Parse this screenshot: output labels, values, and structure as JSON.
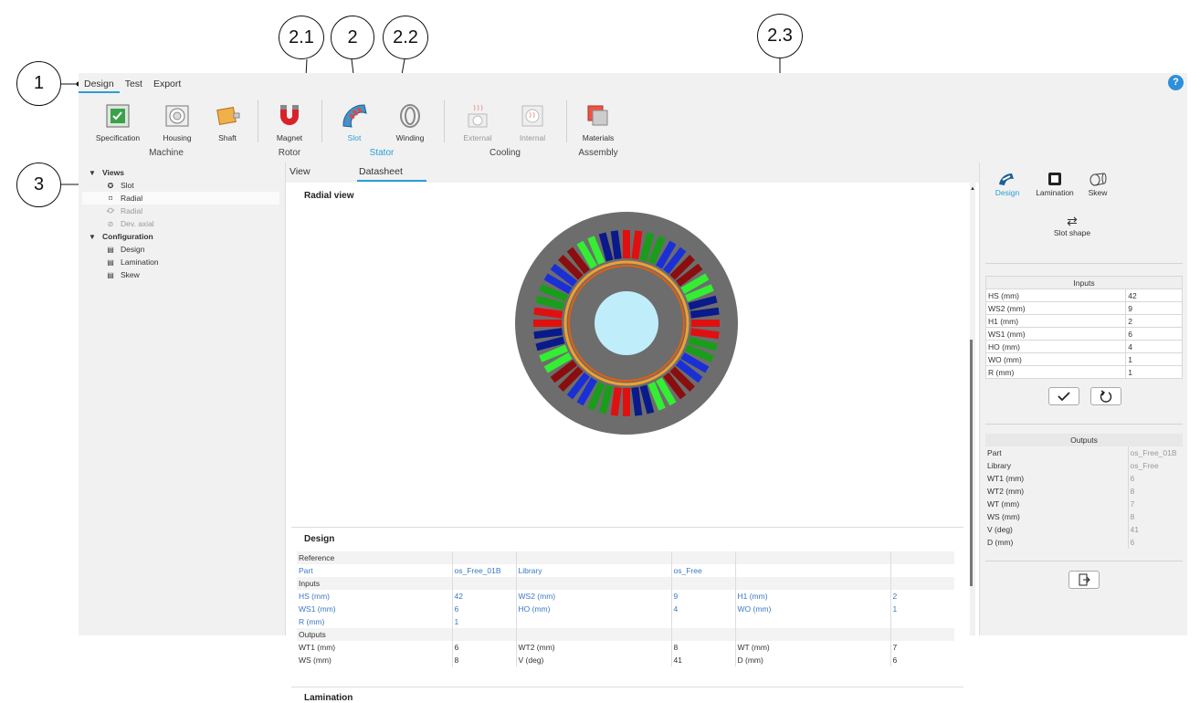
{
  "callouts": [
    "1",
    "2",
    "2.1",
    "2.2",
    "2.3",
    "3"
  ],
  "menu": [
    "Design",
    "Test",
    "Export"
  ],
  "help": "?",
  "ribbon": {
    "buttons": {
      "specification": "Specification",
      "housing": "Housing",
      "shaft": "Shaft",
      "magnet": "Magnet",
      "slot": "Slot",
      "winding": "Winding",
      "external": "External",
      "internal": "Internal",
      "materials": "Materials"
    },
    "groups": {
      "machine": "Machine",
      "rotor": "Rotor",
      "stator": "Stator",
      "cooling": "Cooling",
      "assembly": "Assembly"
    }
  },
  "tree": {
    "views": "Views",
    "slot": "Slot",
    "radial": "Radial",
    "radial_disabled": "Radial",
    "dev_axial": "Dev. axial",
    "configuration": "Configuration",
    "design": "Design",
    "lamination": "Lamination",
    "skew": "Skew"
  },
  "tabs": {
    "view": "View",
    "datasheet": "Datasheet"
  },
  "center": {
    "radial_view_title": "Radial view",
    "design_title": "Design",
    "lamination_title": "Lamination",
    "table": {
      "reference_label": "Reference",
      "part_row": [
        "Part",
        "os_Free_01B",
        "Library",
        "",
        "os_Free",
        "",
        ""
      ],
      "inputs_label": "Inputs",
      "input_rows": [
        [
          "HS (mm)",
          "42",
          "WS2 (mm)",
          "9",
          "H1 (mm)",
          "2"
        ],
        [
          "WS1 (mm)",
          "6",
          "HO (mm)",
          "4",
          "WO (mm)",
          "1"
        ],
        [
          "R (mm)",
          "1",
          "",
          "",
          "",
          ""
        ]
      ],
      "outputs_label": "Outputs",
      "output_rows": [
        [
          "WT1 (mm)",
          "6",
          "WT2 (mm)",
          "8",
          "WT (mm)",
          "7"
        ],
        [
          "WS (mm)",
          "8",
          "V (deg)",
          "41",
          "D (mm)",
          "6"
        ]
      ]
    }
  },
  "right_panel": {
    "design": "Design",
    "lamination": "Lamination",
    "skew": "Skew",
    "slot_shape": "Slot shape",
    "inputs_title": "Inputs",
    "inputs": [
      [
        "HS (mm)",
        "42"
      ],
      [
        "WS2 (mm)",
        "9"
      ],
      [
        "H1 (mm)",
        "2"
      ],
      [
        "WS1 (mm)",
        "6"
      ],
      [
        "HO (mm)",
        "4"
      ],
      [
        "WO (mm)",
        "1"
      ],
      [
        "R (mm)",
        "1"
      ]
    ],
    "outputs_title": "Outputs",
    "outputs": [
      [
        "Part",
        "os_Free_01B"
      ],
      [
        "Library",
        "os_Free"
      ],
      [
        "WT1 (mm)",
        "6"
      ],
      [
        "WT2 (mm)",
        "8"
      ],
      [
        "WT (mm)",
        "7"
      ],
      [
        "WS (mm)",
        "8"
      ],
      [
        "V (deg)",
        "41"
      ],
      [
        "D (mm)",
        "6"
      ]
    ]
  },
  "colors": {
    "accent": "#2a9fd6",
    "slot_colors": [
      "#e01010",
      "#1a9d1a",
      "#1a2fd6",
      "#8b0e0e",
      "#33ee33",
      "#0a1a8a"
    ]
  }
}
